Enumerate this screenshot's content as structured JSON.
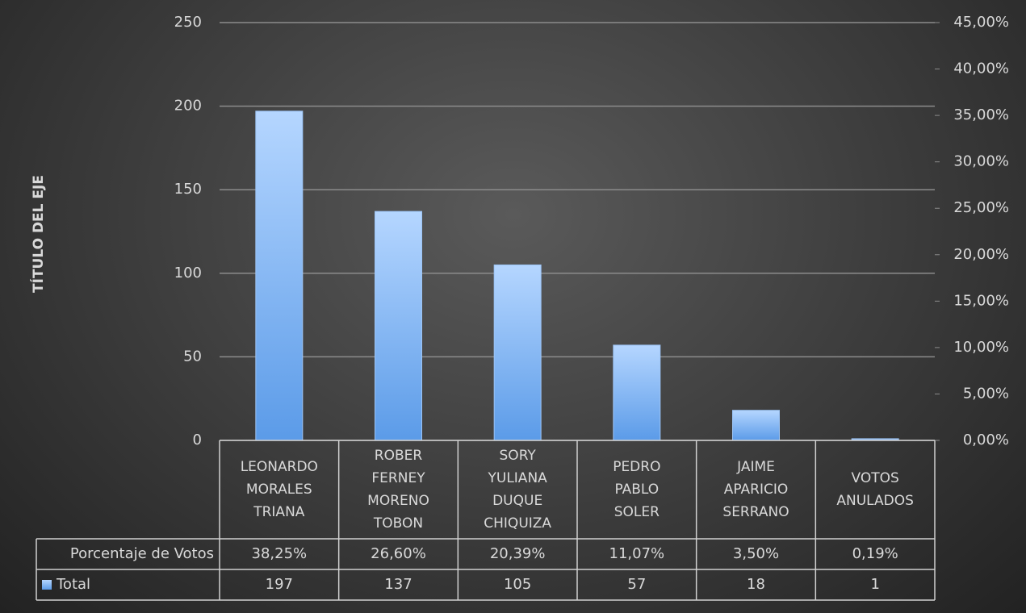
{
  "chart_data": {
    "type": "bar",
    "y_axis_title": "TÍTULO DEL EJE",
    "categories": [
      "LEONARDO MORALES TRIANA",
      "ROBER FERNEY MORENO TOBON",
      "SORY YULIANA DUQUE CHIQUIZA",
      "PEDRO PABLO SOLER",
      "JAIME APARICIO SERRANO",
      "VOTOS ANULADOS"
    ],
    "series": [
      {
        "name": "Porcentaje de Votos",
        "axis": "y2",
        "values": [
          38.25,
          26.6,
          20.39,
          11.07,
          3.5,
          0.19
        ],
        "value_labels": [
          "38,25%",
          "26,60%",
          "20,39%",
          "11,07%",
          "3,50%",
          "0,19%"
        ]
      },
      {
        "name": "Total",
        "color": "#5b9be8",
        "values": [
          197,
          137,
          105,
          57,
          18,
          1
        ]
      }
    ],
    "ylim": [
      0,
      250
    ],
    "yticks": [
      0,
      50,
      100,
      150,
      200,
      250
    ],
    "y2lim": [
      0,
      45
    ],
    "y2ticks": [
      {
        "value": 0,
        "label": "0,00%"
      },
      {
        "value": 5,
        "label": "5,00%"
      },
      {
        "value": 10,
        "label": "10,00%"
      },
      {
        "value": 15,
        "label": "15,00%"
      },
      {
        "value": 20,
        "label": "20,00%"
      },
      {
        "value": 25,
        "label": "25,00%"
      },
      {
        "value": 30,
        "label": "30,00%"
      },
      {
        "value": 35,
        "label": "35,00%"
      },
      {
        "value": 40,
        "label": "40,00%"
      },
      {
        "value": 45,
        "label": "45,00%"
      }
    ],
    "grid": true
  }
}
